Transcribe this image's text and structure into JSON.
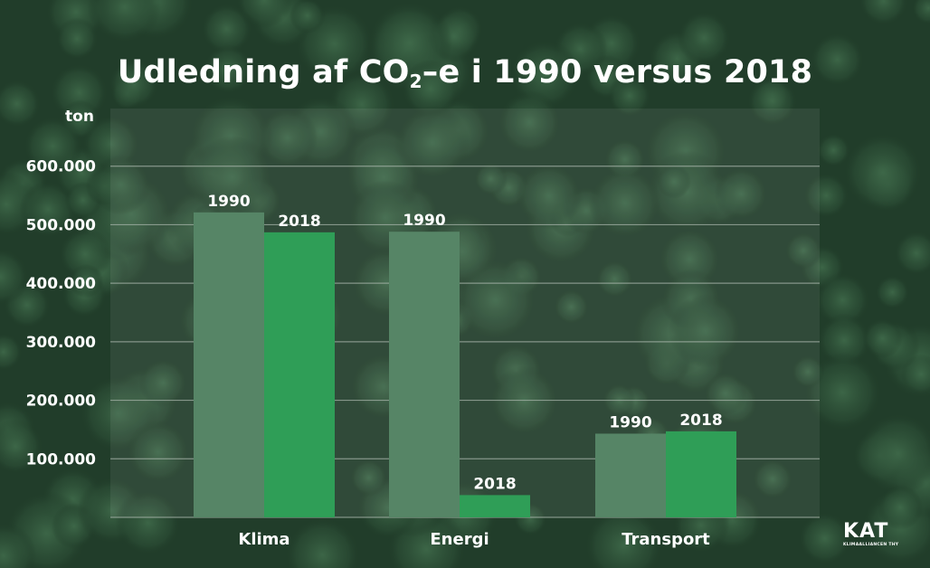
{
  "title": {
    "main": "Udledning af CO",
    "sub": "2",
    "rest": "–e i 1990 versus 2018"
  },
  "colors": {
    "series_1990": "#568566",
    "series_2018": "#2f9e57",
    "gridline": "#a9b7ac"
  },
  "logo": {
    "word": "KAT",
    "sub": "KLIMAALLIANCEN THY"
  },
  "chart_data": {
    "type": "bar",
    "title": "Udledning af CO2–e i 1990 versus 2018",
    "ylabel": "ton",
    "xlabel": "",
    "categories": [
      "Klima",
      "Energi",
      "Transport"
    ],
    "series": [
      {
        "name": "1990",
        "values": [
          521000,
          488000,
          143000
        ]
      },
      {
        "name": "2018",
        "values": [
          487000,
          38000,
          147000
        ]
      }
    ],
    "yticks": [
      100000,
      200000,
      300000,
      400000,
      500000,
      600000
    ],
    "ytick_labels": [
      "100.000",
      "200.000",
      "300.000",
      "400.000",
      "500.000",
      "600.000"
    ],
    "ylim": [
      0,
      700000
    ],
    "grid": true,
    "legend": "none (series year printed above each bar)"
  }
}
